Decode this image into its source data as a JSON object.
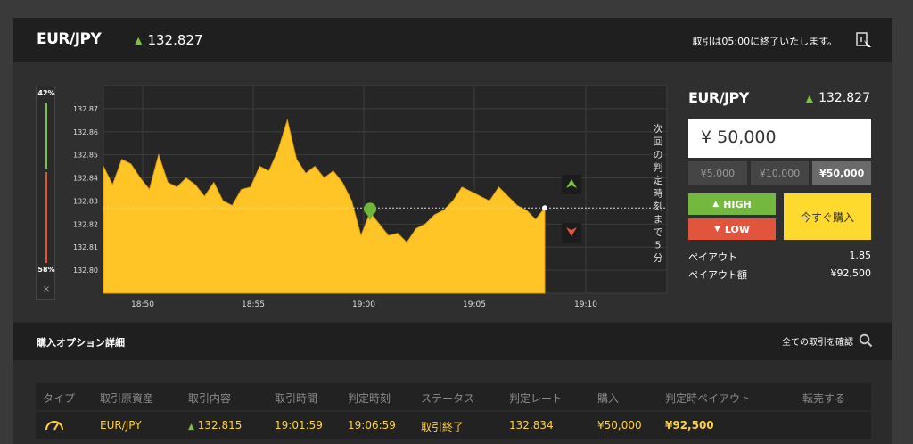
{
  "header": {
    "pair": "EUR/JPY",
    "rate": "132.827",
    "end_note": "取引は05:00に終了いたします。"
  },
  "sentiment": {
    "high_pct": "42%",
    "low_pct": "58%",
    "high_ratio": 0.42,
    "close": "×"
  },
  "chart_data": {
    "type": "area",
    "y_ticks": [
      "132.87",
      "132.86",
      "132.85",
      "132.84",
      "132.83",
      "132.82",
      "132.81",
      "132.80"
    ],
    "x_ticks": [
      "18:50",
      "18:55",
      "19:00",
      "19:05",
      "19:10"
    ],
    "current_rate": 132.827,
    "countdown_text": "次回の判定時刻まで5分",
    "countdown_chars": [
      "次",
      "回",
      "の",
      "判",
      "定",
      "時",
      "刻",
      "ま",
      "で",
      "5",
      "分"
    ],
    "series_color": "#ffc425",
    "series": [
      {
        "values": [
          132.845,
          132.837,
          132.848,
          132.846,
          132.84,
          132.835,
          132.85,
          132.838,
          132.836,
          132.84,
          132.837,
          132.832,
          132.838,
          132.83,
          132.828,
          132.835,
          132.836,
          132.845,
          132.843,
          132.852,
          132.865,
          132.848,
          132.842,
          132.845,
          132.84,
          132.843,
          132.838,
          132.83,
          132.815,
          132.825,
          132.82,
          132.815,
          132.816,
          132.812,
          132.818,
          132.82,
          132.824,
          132.826,
          132.83,
          132.836,
          132.834,
          132.832,
          132.83,
          132.836,
          132.832,
          132.828,
          132.826,
          132.822,
          132.827
        ]
      }
    ]
  },
  "trade_panel": {
    "pair": "EUR/JPY",
    "rate": "132.827",
    "amount": "¥ 50,000",
    "presets": [
      "¥5,000",
      "¥10,000",
      "¥50,000"
    ],
    "active_preset": 2,
    "high_label": "HIGH",
    "low_label": "LOW",
    "buy_label": "今すぐ購入",
    "payout_label": "ペイアウト",
    "payout_value": "1.85",
    "payout_amount_label": "ペイアウト額",
    "payout_amount_value": "¥92,500"
  },
  "section": {
    "title": "購入オプション詳細",
    "all_trades": "全ての取引を確認"
  },
  "table": {
    "headers": [
      "タイプ",
      "取引原資産",
      "取引内容",
      "取引時間",
      "判定時刻",
      "ステータス",
      "判定レート",
      "購入",
      "判定時ペイアウト",
      "転売する"
    ],
    "row": {
      "asset": "EUR/JPY",
      "content": "132.815",
      "trade_time": "19:01:59",
      "judge_time": "19:06:59",
      "status": "取引終了",
      "judge_rate": "132.834",
      "purchase": "¥50,000",
      "payout": "¥92,500"
    }
  }
}
